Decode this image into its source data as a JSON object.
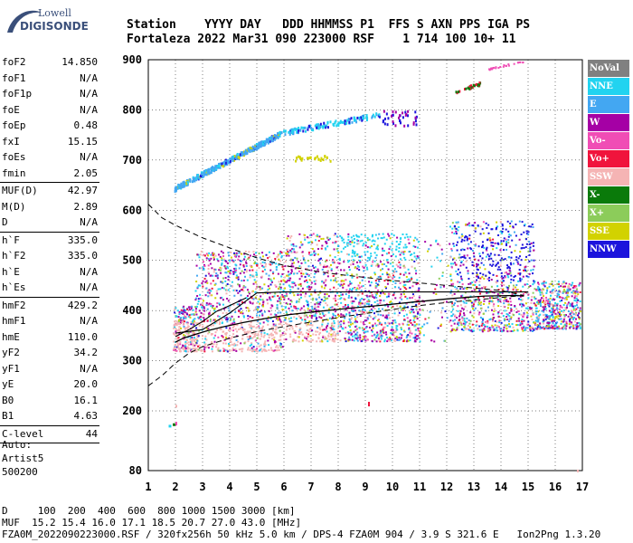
{
  "logo": {
    "line1": "Lowell",
    "line2": "DIGISONDE"
  },
  "header": {
    "labels": "Station    YYYY DAY   DDD HHMMSS P1  FFS S AXN PPS IGA PS",
    "values": "Fortaleza 2022 Mar31 090 223000 RSF    1 714 100 10+ 11"
  },
  "params": {
    "group1": [
      {
        "k": "foF2",
        "v": "14.850"
      },
      {
        "k": "foF1",
        "v": "N/A"
      },
      {
        "k": "foF1p",
        "v": "N/A"
      },
      {
        "k": "foE",
        "v": "N/A"
      },
      {
        "k": "foEp",
        "v": "0.48"
      },
      {
        "k": "fxI",
        "v": "15.15"
      },
      {
        "k": "foEs",
        "v": "N/A"
      },
      {
        "k": "fmin",
        "v": "2.05"
      }
    ],
    "group2": [
      {
        "k": "MUF(D)",
        "v": "42.97"
      },
      {
        "k": "M(D)",
        "v": "2.89"
      },
      {
        "k": "D",
        "v": "N/A"
      }
    ],
    "group3": [
      {
        "k": "h`F",
        "v": "335.0"
      },
      {
        "k": "h`F2",
        "v": "335.0"
      },
      {
        "k": "h`E",
        "v": "N/A"
      },
      {
        "k": "h`Es",
        "v": "N/A"
      }
    ],
    "group4": [
      {
        "k": "hmF2",
        "v": "429.2"
      },
      {
        "k": "hmF1",
        "v": "N/A"
      },
      {
        "k": "hmE",
        "v": "110.0"
      },
      {
        "k": "yF2",
        "v": "34.2"
      },
      {
        "k": "yF1",
        "v": "N/A"
      },
      {
        "k": "yE",
        "v": "20.0"
      },
      {
        "k": "B0",
        "v": "16.1"
      },
      {
        "k": "B1",
        "v": "4.63"
      }
    ],
    "group5": [
      {
        "k": "C-level",
        "v": "44"
      }
    ]
  },
  "auto": {
    "l1": "Auto:",
    "l2": "Artist5",
    "l3": "500200"
  },
  "legend": [
    {
      "label": "NoVal",
      "color": "#808080"
    },
    {
      "label": "NNE",
      "color": "#22d3f0"
    },
    {
      "label": "E",
      "color": "#43a7f2"
    },
    {
      "label": "W",
      "color": "#a500a5"
    },
    {
      "label": "Vo-",
      "color": "#f04db5"
    },
    {
      "label": "Vo+",
      "color": "#f0143c"
    },
    {
      "label": "SSW",
      "color": "#f5b4b4"
    },
    {
      "label": "X-",
      "color": "#0a7a0a"
    },
    {
      "label": "X+",
      "color": "#8ccc5a"
    },
    {
      "label": "SSE",
      "color": "#d2d200"
    },
    {
      "label": "NNW",
      "color": "#1c14dc"
    }
  ],
  "footer": {
    "l1": "D     100  200  400  600  800 1000 1500 3000 [km]",
    "l2": "MUF  15.2 15.4 16.0 17.1 18.5 20.7 27.0 43.0 [MHz]",
    "l3": "FZA0M_2022090223000.RSF / 320fx256h 50 kHz 5.0 km / DPS-4 FZA0M 904 / 3.9 S 321.6 E   Ion2Png 1.3.20"
  },
  "chart_data": {
    "type": "scatter",
    "xlabel": "",
    "ylabel": "",
    "xlim": [
      1,
      17
    ],
    "ylim": [
      80,
      900
    ],
    "xticks": [
      1,
      2,
      3,
      4,
      5,
      6,
      7,
      8,
      9,
      10,
      11,
      12,
      13,
      14,
      15,
      16,
      17
    ],
    "yticks": [
      80,
      200,
      300,
      400,
      500,
      600,
      700,
      800,
      900
    ],
    "grid": true,
    "traces": {
      "o_trace": {
        "x": [
          2.0,
          2.3,
          2.7,
          3.2,
          3.8,
          4.5,
          5.3,
          6.2,
          7.2,
          8.3,
          9.5,
          10.8,
          12.2,
          13.4,
          14.5,
          14.85
        ],
        "y": [
          337,
          345,
          352,
          360,
          368,
          376,
          384,
          392,
          398,
          404,
          410,
          417,
          424,
          429,
          430,
          429.2
        ]
      },
      "upper_line": {
        "x": [
          2.0,
          3.0,
          4.0,
          5.0,
          6.0,
          7.0,
          8.0,
          9.0,
          10.0,
          11.0,
          12.0,
          13.0,
          14.0,
          15.0
        ],
        "y": [
          355,
          362,
          395,
          435,
          437,
          437,
          437,
          437,
          437,
          437,
          437,
          437,
          437,
          437
        ]
      },
      "x_trace": {
        "x": [
          2.0,
          2.5,
          3.0,
          3.5,
          4.0,
          4.6
        ],
        "y": [
          348,
          362,
          378,
          398,
          410,
          425
        ]
      },
      "profile_top": {
        "x": [
          1.0,
          1.5,
          2.0,
          3.0,
          4.0,
          5.0,
          6.0,
          7.0,
          8.0,
          9.0,
          10.0,
          11.0,
          12.0,
          13.0,
          14.0,
          14.85
        ],
        "y": [
          612,
          585,
          570,
          545,
          525,
          505,
          490,
          480,
          472,
          466,
          460,
          455,
          450,
          445,
          440,
          430
        ]
      },
      "profile_bottom": {
        "x": [
          1.0,
          1.5,
          2.0,
          2.5,
          3.0,
          4.0,
          5.0,
          6.0,
          7.0,
          8.0,
          9.0,
          10.0,
          11.0,
          12.0,
          13.0,
          14.0,
          14.85
        ],
        "y": [
          250,
          270,
          295,
          315,
          328,
          345,
          358,
          368,
          377,
          386,
          394,
          402,
          410,
          416,
          421,
          426,
          430
        ]
      }
    },
    "echo_bands": [
      {
        "name": "E",
        "x": [
          1.95,
          5.8
        ],
        "y": [
          645,
          755
        ],
        "note": "upper linear band"
      },
      {
        "name": "NNE",
        "x": [
          5.8,
          9.5
        ],
        "y": [
          760,
          810
        ]
      },
      {
        "name": "NNW",
        "x": [
          9.6,
          10.9
        ],
        "y": [
          780,
          810
        ]
      },
      {
        "name": "X-",
        "x": [
          12.3,
          13.3
        ],
        "y": [
          835,
          860
        ]
      },
      {
        "name": "Vo-",
        "x": [
          13.4,
          14.8
        ],
        "y": [
          880,
          900
        ]
      }
    ]
  }
}
